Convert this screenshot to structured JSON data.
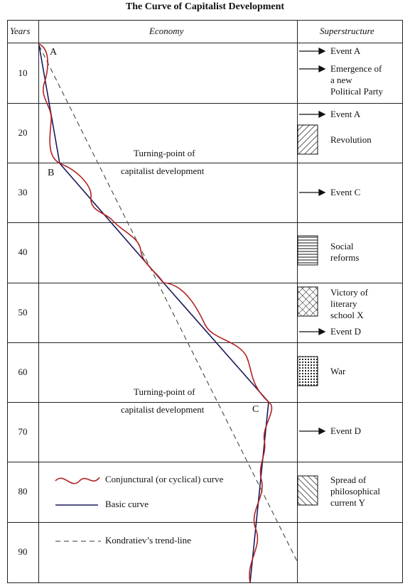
{
  "title": "The Curve of Capitalist Development",
  "columns": {
    "years": "Years",
    "economy": "Economy",
    "superstructure": "Superstructure"
  },
  "years": [
    "10",
    "20",
    "30",
    "40",
    "50",
    "60",
    "70",
    "80",
    "90"
  ],
  "points": {
    "a": "A",
    "b": "B",
    "c": "C"
  },
  "turning_point_1": {
    "line1": "Turning-point of",
    "line2": "capitalist development"
  },
  "turning_point_2": {
    "line1": "Turning-point of",
    "line2": "capitalist development"
  },
  "legend": {
    "conjunctural": "Conjunctural (or cyclical) curve",
    "basic": "Basic curve",
    "trend": "Kondratiev’s trend-line"
  },
  "events": {
    "r1_event_a": "Event A",
    "r1_party_l1": "Emergence of",
    "r1_party_l2": "a new",
    "r1_party_l3": "Political Party",
    "r2_event_a": "Event A",
    "r2_revolution": "Revolution",
    "r3_event_c": "Event C",
    "r4_reforms_l1": "Social",
    "r4_reforms_l2": "reforms",
    "r5_victory_l1": "Victory of",
    "r5_victory_l2": "literary",
    "r5_victory_l3": "school X",
    "r5_event_d": "Event D",
    "r6_war": "War",
    "r7_event_d": "Event D",
    "r8_spread_l1": "Spread of",
    "r8_spread_l2": "philosophical",
    "r8_spread_l3": "current Y"
  },
  "colors": {
    "conjunctural": "#b22222",
    "basic": "#1a1a5e",
    "trend": "#556655",
    "grid": "#222222"
  }
}
